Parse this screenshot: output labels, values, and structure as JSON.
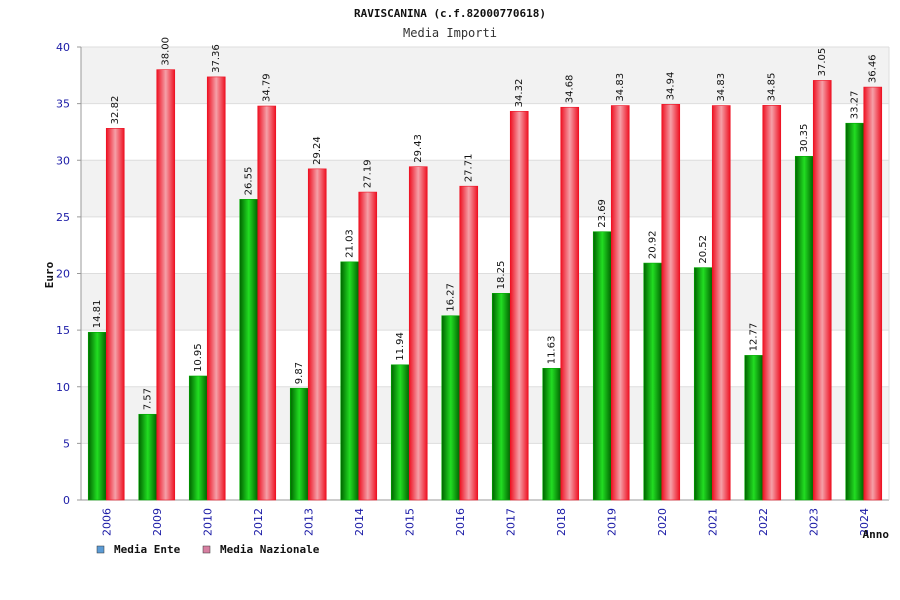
{
  "chart_data": {
    "type": "bar",
    "title": "RAVISCANINA (c.f.82000770618)",
    "subtitle": "Media Importi",
    "xlabel": "Anno",
    "ylabel": "Euro",
    "ylim": [
      0,
      40
    ],
    "yticks": [
      0,
      5,
      10,
      15,
      20,
      25,
      30,
      35,
      40
    ],
    "categories": [
      "2006",
      "2009",
      "2010",
      "2012",
      "2013",
      "2014",
      "2015",
      "2016",
      "2017",
      "2018",
      "2019",
      "2020",
      "2021",
      "2022",
      "2023",
      "2024"
    ],
    "series": [
      {
        "name": "Media Ente",
        "color": "#00aa00",
        "values": [
          14.81,
          7.57,
          10.95,
          26.55,
          9.87,
          21.03,
          11.94,
          16.27,
          18.25,
          11.63,
          23.69,
          20.92,
          20.52,
          12.77,
          30.35,
          33.27
        ],
        "labels": [
          "14.81",
          "7.57",
          "10.95",
          "26.55",
          "9.87",
          "21.03",
          "11.94",
          "16.27",
          "18.25",
          "11.63",
          "23.69",
          "20.92",
          "20.52",
          "12.77",
          "30.35",
          "33.27"
        ]
      },
      {
        "name": "Media Nazionale",
        "color": "#ee1122",
        "values": [
          32.82,
          38.0,
          37.36,
          34.79,
          29.24,
          27.19,
          29.43,
          27.71,
          34.32,
          34.68,
          34.83,
          34.94,
          34.83,
          34.85,
          37.05,
          36.46
        ],
        "labels": [
          "32.82",
          "38.00",
          "37.36",
          "34.79",
          "29.24",
          "27.19",
          "29.43",
          "27.71",
          "34.32",
          "34.68",
          "34.83",
          "34.94",
          "34.83",
          "34.85",
          "37.05",
          "36.46"
        ]
      }
    ],
    "legend": {
      "position": "bottom-left",
      "items": [
        {
          "label": "Media Ente",
          "swatch_color": "#5b9bd5"
        },
        {
          "label": "Media Nazionale",
          "swatch_color": "#d77fa1"
        }
      ]
    },
    "grid": true,
    "band_color": "#f2f2f2"
  }
}
